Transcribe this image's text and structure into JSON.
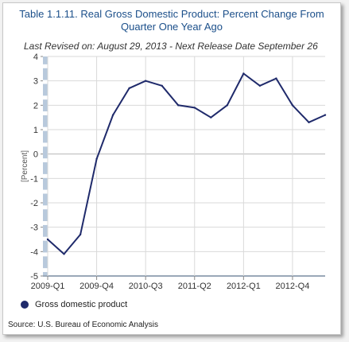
{
  "title_line1": "Table 1.1.11. Real Gross Domestic Product: Percent Change From",
  "title_line2": "Quarter One Year Ago",
  "subtitle": "Last Revised on: August 29, 2013 - Next Release Date September 26",
  "legend_label": "Gross domestic product",
  "source": "Source: U.S. Bureau of Economic Analysis",
  "colors": {
    "line": "#1f2a6b",
    "title": "#1b4f8a",
    "axis_band": "#b8c9dc"
  },
  "chart_data": {
    "type": "line",
    "title": "Table 1.1.11. Real Gross Domestic Product: Percent Change From Quarter One Year Ago",
    "ylabel": "[Percent]",
    "xlabel": "",
    "ylim": [
      -5,
      4
    ],
    "yticks": [
      4,
      3,
      2,
      1,
      0,
      -1,
      -2,
      -3,
      -4,
      -5
    ],
    "grid": true,
    "legend": "bottom-left",
    "x": [
      "2009-Q1",
      "2009-Q2",
      "2009-Q3",
      "2009-Q4",
      "2010-Q1",
      "2010-Q2",
      "2010-Q3",
      "2010-Q4",
      "2011-Q1",
      "2011-Q2",
      "2011-Q3",
      "2011-Q4",
      "2012-Q1",
      "2012-Q2",
      "2012-Q3",
      "2012-Q4",
      "2013-Q1",
      "2013-Q2"
    ],
    "xtick_labels": [
      "2009-Q1",
      "2009-Q4",
      "2010-Q3",
      "2011-Q2",
      "2012-Q1",
      "2012-Q4"
    ],
    "series": [
      {
        "name": "Gross domestic product",
        "values": [
          -3.5,
          -4.1,
          -3.3,
          -0.2,
          1.6,
          2.7,
          3.0,
          2.8,
          2.0,
          1.9,
          1.5,
          2.0,
          3.3,
          2.8,
          3.1,
          2.0,
          1.3,
          1.6
        ]
      }
    ]
  }
}
